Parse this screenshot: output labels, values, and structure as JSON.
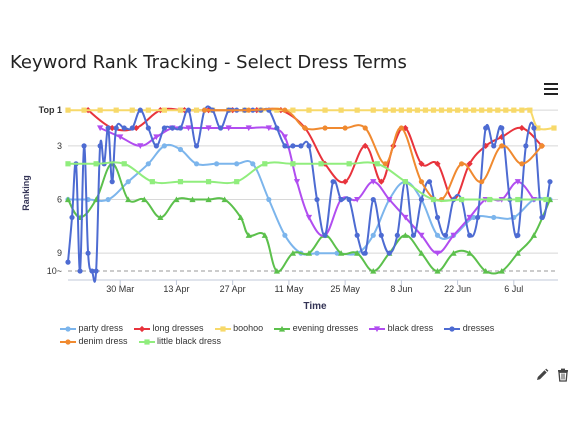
{
  "title": "Keyword Rank Tracking - Select Dress Terms",
  "chart_data": {
    "type": "line",
    "title": "Keyword Rank Tracking - Select Dress Terms",
    "xlabel": "Time",
    "ylabel": "Ranking",
    "x_range": [
      "2014-03-17",
      "2014-07-17"
    ],
    "y_range": [
      10.5,
      0.6
    ],
    "y_reversed": true,
    "grid": true,
    "legend_position": "bottom",
    "x_ticks": [
      "30 Mar",
      "13 Apr",
      "27 Apr",
      "11 May",
      "25 May",
      "8 Jun",
      "22 Jun",
      "6 Jul"
    ],
    "x_tick_dates": [
      "2014-03-30",
      "2014-04-13",
      "2014-04-27",
      "2014-05-11",
      "2014-05-25",
      "2014-06-08",
      "2014-06-22",
      "2014-07-06"
    ],
    "y_ticks": [
      {
        "value": 1,
        "label": "Top 1"
      },
      {
        "value": 3,
        "label": "3"
      },
      {
        "value": 6,
        "label": "6"
      },
      {
        "value": 9,
        "label": "9"
      },
      {
        "value": 10,
        "label": "10~"
      }
    ],
    "series": [
      {
        "name": "party dress",
        "color": "#7cb5ec",
        "marker": "circle",
        "points": [
          [
            "2014-03-17",
            6
          ],
          [
            "2014-03-22",
            6
          ],
          [
            "2014-03-27",
            6
          ],
          [
            "2014-04-01",
            5
          ],
          [
            "2014-04-06",
            4
          ],
          [
            "2014-04-10",
            3
          ],
          [
            "2014-04-14",
            3.2
          ],
          [
            "2014-04-18",
            4
          ],
          [
            "2014-04-23",
            4
          ],
          [
            "2014-04-28",
            4
          ],
          [
            "2014-05-02",
            4
          ],
          [
            "2014-05-06",
            6
          ],
          [
            "2014-05-10",
            8
          ],
          [
            "2014-05-14",
            9
          ],
          [
            "2014-05-18",
            9
          ],
          [
            "2014-05-23",
            9
          ],
          [
            "2014-05-28",
            9
          ],
          [
            "2014-06-01",
            8
          ],
          [
            "2014-06-05",
            6
          ],
          [
            "2014-06-09",
            5
          ],
          [
            "2014-06-13",
            6
          ],
          [
            "2014-06-17",
            8
          ],
          [
            "2014-06-21",
            8
          ],
          [
            "2014-06-26",
            7
          ],
          [
            "2014-07-01",
            7
          ],
          [
            "2014-07-06",
            7
          ],
          [
            "2014-07-11",
            6
          ],
          [
            "2014-07-15",
            6
          ]
        ]
      },
      {
        "name": "long dresses",
        "color": "#e8333c",
        "marker": "diamond",
        "points": [
          [
            "2014-03-22",
            1
          ],
          [
            "2014-03-28",
            2
          ],
          [
            "2014-04-03",
            2
          ],
          [
            "2014-04-09",
            1
          ],
          [
            "2014-04-15",
            1
          ],
          [
            "2014-04-21",
            1
          ],
          [
            "2014-04-27",
            1
          ],
          [
            "2014-05-03",
            1
          ],
          [
            "2014-05-09",
            1
          ],
          [
            "2014-05-15",
            2
          ],
          [
            "2014-05-20",
            4
          ],
          [
            "2014-05-25",
            5
          ],
          [
            "2014-05-30",
            3
          ],
          [
            "2014-06-03",
            5
          ],
          [
            "2014-06-06",
            3
          ],
          [
            "2014-06-09",
            2
          ],
          [
            "2014-06-13",
            4
          ],
          [
            "2014-06-17",
            4
          ],
          [
            "2014-06-21",
            6
          ],
          [
            "2014-06-25",
            4
          ],
          [
            "2014-06-29",
            3
          ],
          [
            "2014-07-03",
            2.5
          ],
          [
            "2014-07-08",
            2
          ],
          [
            "2014-07-13",
            3
          ]
        ]
      },
      {
        "name": "boohoo",
        "color": "#f7d96a",
        "marker": "square",
        "points": [
          [
            "2014-03-17",
            1
          ],
          [
            "2014-03-21",
            1
          ],
          [
            "2014-03-25",
            1
          ],
          [
            "2014-03-29",
            1
          ],
          [
            "2014-04-02",
            1
          ],
          [
            "2014-04-06",
            1
          ],
          [
            "2014-04-10",
            1
          ],
          [
            "2014-04-14",
            1
          ],
          [
            "2014-04-18",
            1
          ],
          [
            "2014-04-22",
            1
          ],
          [
            "2014-04-26",
            1
          ],
          [
            "2014-04-30",
            1
          ],
          [
            "2014-05-04",
            1
          ],
          [
            "2014-05-08",
            1
          ],
          [
            "2014-05-12",
            1
          ],
          [
            "2014-05-16",
            1
          ],
          [
            "2014-05-20",
            1
          ],
          [
            "2014-05-24",
            1
          ],
          [
            "2014-05-28",
            1
          ],
          [
            "2014-06-01",
            1
          ],
          [
            "2014-06-04",
            1
          ],
          [
            "2014-06-06",
            1
          ],
          [
            "2014-06-08",
            1
          ],
          [
            "2014-06-10",
            1
          ],
          [
            "2014-06-12",
            1
          ],
          [
            "2014-06-14",
            1
          ],
          [
            "2014-06-16",
            1
          ],
          [
            "2014-06-18",
            1
          ],
          [
            "2014-06-20",
            1
          ],
          [
            "2014-06-22",
            1
          ],
          [
            "2014-06-24",
            1
          ],
          [
            "2014-06-26",
            1
          ],
          [
            "2014-06-28",
            1
          ],
          [
            "2014-06-30",
            1
          ],
          [
            "2014-07-02",
            1
          ],
          [
            "2014-07-04",
            1
          ],
          [
            "2014-07-06",
            1
          ],
          [
            "2014-07-08",
            1
          ],
          [
            "2014-07-10",
            1
          ],
          [
            "2014-07-12",
            2
          ],
          [
            "2014-07-16",
            2
          ]
        ]
      },
      {
        "name": "evening dresses",
        "color": "#5cc04c",
        "marker": "triangle",
        "points": [
          [
            "2014-03-17",
            6
          ],
          [
            "2014-03-20",
            7
          ],
          [
            "2014-03-24",
            6
          ],
          [
            "2014-03-28",
            4
          ],
          [
            "2014-04-01",
            6
          ],
          [
            "2014-04-05",
            6
          ],
          [
            "2014-04-09",
            7
          ],
          [
            "2014-04-13",
            6
          ],
          [
            "2014-04-17",
            6
          ],
          [
            "2014-04-21",
            6
          ],
          [
            "2014-04-25",
            6
          ],
          [
            "2014-04-29",
            7
          ],
          [
            "2014-05-01",
            8
          ],
          [
            "2014-05-05",
            8
          ],
          [
            "2014-05-08",
            10
          ],
          [
            "2014-05-12",
            9
          ],
          [
            "2014-05-16",
            9
          ],
          [
            "2014-05-20",
            8
          ],
          [
            "2014-05-24",
            9
          ],
          [
            "2014-05-28",
            9
          ],
          [
            "2014-06-01",
            10
          ],
          [
            "2014-06-05",
            9
          ],
          [
            "2014-06-09",
            8
          ],
          [
            "2014-06-13",
            9
          ],
          [
            "2014-06-17",
            10
          ],
          [
            "2014-06-21",
            9
          ],
          [
            "2014-06-25",
            9
          ],
          [
            "2014-06-29",
            10
          ],
          [
            "2014-07-03",
            10
          ],
          [
            "2014-07-07",
            9
          ],
          [
            "2014-07-11",
            8
          ],
          [
            "2014-07-15",
            6
          ]
        ]
      },
      {
        "name": "black dress",
        "color": "#b14df0",
        "marker": "triangle-down",
        "points": [
          [
            "2014-03-25",
            2
          ],
          [
            "2014-03-30",
            2.5
          ],
          [
            "2014-04-04",
            3
          ],
          [
            "2014-04-08",
            2.5
          ],
          [
            "2014-04-12",
            2
          ],
          [
            "2014-04-16",
            2
          ],
          [
            "2014-04-21",
            2
          ],
          [
            "2014-04-26",
            2
          ],
          [
            "2014-05-01",
            2
          ],
          [
            "2014-05-06",
            2
          ],
          [
            "2014-05-10",
            2.5
          ],
          [
            "2014-05-13",
            5
          ],
          [
            "2014-05-16",
            7
          ],
          [
            "2014-05-20",
            8
          ],
          [
            "2014-05-24",
            6
          ],
          [
            "2014-05-28",
            6
          ],
          [
            "2014-06-01",
            5
          ],
          [
            "2014-06-05",
            6
          ],
          [
            "2014-06-09",
            7
          ],
          [
            "2014-06-13",
            8
          ],
          [
            "2014-06-17",
            9
          ],
          [
            "2014-06-21",
            8
          ],
          [
            "2014-06-25",
            7
          ],
          [
            "2014-06-29",
            6
          ],
          [
            "2014-07-03",
            6
          ],
          [
            "2014-07-07",
            5
          ],
          [
            "2014-07-11",
            6
          ]
        ]
      },
      {
        "name": "dresses",
        "color": "#4d6bd2",
        "marker": "circle",
        "points": [
          [
            "2014-03-17",
            9.5
          ],
          [
            "2014-03-18",
            7
          ],
          [
            "2014-03-19",
            4
          ],
          [
            "2014-03-20",
            10
          ],
          [
            "2014-03-21",
            3
          ],
          [
            "2014-03-22",
            9
          ],
          [
            "2014-03-23",
            10
          ],
          [
            "2014-03-24",
            10
          ],
          [
            "2014-03-25",
            3
          ],
          [
            "2014-03-26",
            4
          ],
          [
            "2014-03-27",
            2
          ],
          [
            "2014-03-28",
            5
          ],
          [
            "2014-03-29",
            2
          ],
          [
            "2014-03-31",
            2
          ],
          [
            "2014-04-02",
            2
          ],
          [
            "2014-04-04",
            1
          ],
          [
            "2014-04-06",
            2
          ],
          [
            "2014-04-08",
            3
          ],
          [
            "2014-04-10",
            2
          ],
          [
            "2014-04-12",
            2
          ],
          [
            "2014-04-14",
            2
          ],
          [
            "2014-04-16",
            1
          ],
          [
            "2014-04-18",
            3
          ],
          [
            "2014-04-20",
            1
          ],
          [
            "2014-04-22",
            1
          ],
          [
            "2014-04-24",
            2
          ],
          [
            "2014-04-26",
            1
          ],
          [
            "2014-04-28",
            1
          ],
          [
            "2014-04-30",
            1
          ],
          [
            "2014-05-02",
            1
          ],
          [
            "2014-05-04",
            1
          ],
          [
            "2014-05-06",
            1
          ],
          [
            "2014-05-08",
            2
          ],
          [
            "2014-05-10",
            3
          ],
          [
            "2014-05-12",
            3
          ],
          [
            "2014-05-14",
            3
          ],
          [
            "2014-05-16",
            3
          ],
          [
            "2014-05-18",
            6
          ],
          [
            "2014-05-20",
            8
          ],
          [
            "2014-05-22",
            5
          ],
          [
            "2014-05-24",
            6
          ],
          [
            "2014-05-26",
            6
          ],
          [
            "2014-05-28",
            8
          ],
          [
            "2014-05-30",
            9
          ],
          [
            "2014-06-01",
            6
          ],
          [
            "2014-06-03",
            8
          ],
          [
            "2014-06-05",
            9
          ],
          [
            "2014-06-07",
            8
          ],
          [
            "2014-06-09",
            5
          ],
          [
            "2014-06-11",
            8
          ],
          [
            "2014-06-13",
            6
          ],
          [
            "2014-06-15",
            5
          ],
          [
            "2014-06-17",
            7
          ],
          [
            "2014-06-19",
            8
          ],
          [
            "2014-06-21",
            6
          ],
          [
            "2014-06-23",
            6
          ],
          [
            "2014-06-25",
            8
          ],
          [
            "2014-06-27",
            7
          ],
          [
            "2014-06-29",
            2
          ],
          [
            "2014-07-01",
            3
          ],
          [
            "2014-07-03",
            2
          ],
          [
            "2014-07-05",
            6
          ],
          [
            "2014-07-07",
            8
          ],
          [
            "2014-07-09",
            3
          ],
          [
            "2014-07-11",
            2
          ],
          [
            "2014-07-13",
            7
          ],
          [
            "2014-07-15",
            5
          ]
        ]
      },
      {
        "name": "denim dress",
        "color": "#f08a30",
        "marker": "circle",
        "points": [
          [
            "2014-04-20",
            1
          ],
          [
            "2014-05-01",
            1
          ],
          [
            "2014-05-10",
            1
          ],
          [
            "2014-05-15",
            2
          ],
          [
            "2014-05-20",
            2
          ],
          [
            "2014-05-25",
            2
          ],
          [
            "2014-05-30",
            2
          ],
          [
            "2014-06-04",
            4
          ],
          [
            "2014-06-08",
            2
          ],
          [
            "2014-06-13",
            5
          ],
          [
            "2014-06-18",
            6
          ],
          [
            "2014-06-23",
            4
          ],
          [
            "2014-06-28",
            5
          ],
          [
            "2014-07-03",
            3
          ],
          [
            "2014-07-08",
            4
          ],
          [
            "2014-07-13",
            3
          ]
        ]
      },
      {
        "name": "little black dress",
        "color": "#90ed7d",
        "marker": "square",
        "points": [
          [
            "2014-03-17",
            4
          ],
          [
            "2014-03-24",
            4
          ],
          [
            "2014-03-31",
            4
          ],
          [
            "2014-04-07",
            5
          ],
          [
            "2014-04-14",
            5
          ],
          [
            "2014-04-21",
            5
          ],
          [
            "2014-04-28",
            5
          ],
          [
            "2014-05-05",
            4
          ],
          [
            "2014-05-12",
            4
          ],
          [
            "2014-05-19",
            4
          ],
          [
            "2014-05-26",
            4
          ],
          [
            "2014-06-02",
            4
          ],
          [
            "2014-06-09",
            5
          ],
          [
            "2014-06-16",
            6
          ],
          [
            "2014-06-23",
            6
          ],
          [
            "2014-06-30",
            6
          ],
          [
            "2014-07-07",
            6
          ],
          [
            "2014-07-14",
            6
          ]
        ]
      }
    ]
  }
}
